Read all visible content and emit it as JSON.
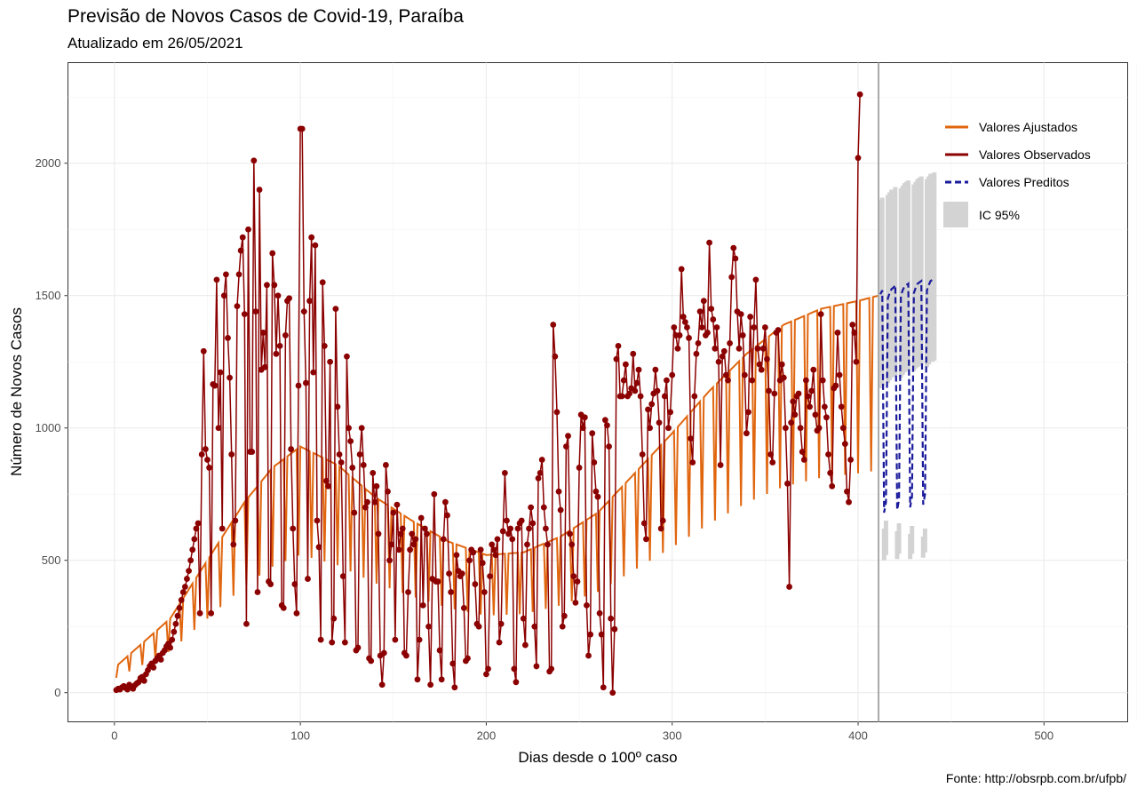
{
  "title": "Previsão de Novos Casos de Covid-19, Paraíba",
  "subtitle": "Atualizado em 26/05/2021",
  "caption": "Fonte: http://obsrpb.com.br/ufpb/",
  "colors": {
    "fitted": "#E0660F",
    "observed": "#8B0000",
    "predicted": "#1A1A9C",
    "ci": "#D3D3D3",
    "cutoff": "#A9A9A9",
    "grid": "#EBEBEB"
  },
  "chart_data": {
    "type": "line",
    "xlabel": "Dias desde o 100º caso",
    "ylabel": "Número de Novos Casos",
    "xlim": [
      -25,
      545
    ],
    "ylim": [
      -110,
      2380
    ],
    "x_ticks": [
      0,
      100,
      200,
      300,
      400,
      500
    ],
    "y_ticks": [
      0,
      500,
      1000,
      1500,
      2000
    ],
    "grid": true,
    "cutoff_x": 411,
    "legend": {
      "position": "top-right",
      "entries": [
        "Valores Ajustados",
        "Valores Observados",
        "Valores Preditos",
        "IC 95%"
      ]
    },
    "series": [
      {
        "name": "Valores Observados",
        "x_start": 1,
        "values": [
          10,
          15,
          12,
          20,
          25,
          18,
          12,
          30,
          22,
          15,
          28,
          35,
          40,
          55,
          60,
          45,
          70,
          85,
          100,
          110,
          95,
          120,
          130,
          140,
          125,
          150,
          160,
          175,
          185,
          170,
          200,
          230,
          260,
          290,
          320,
          350,
          380,
          400,
          430,
          460,
          500,
          540,
          580,
          620,
          640,
          300,
          900,
          1290,
          920,
          880,
          850,
          300,
          1165,
          1160,
          1560,
          1000,
          1210,
          620,
          1500,
          1580,
          1340,
          1190,
          900,
          560,
          650,
          1460,
          1580,
          1670,
          1720,
          1430,
          260,
          1750,
          910,
          910,
          2010,
          1440,
          380,
          1900,
          1220,
          1360,
          1230,
          1540,
          420,
          410,
          1660,
          1540,
          1280,
          1500,
          1310,
          330,
          320,
          1350,
          1480,
          1490,
          920,
          620,
          410,
          300,
          1160,
          2130,
          2130,
          1440,
          1170,
          430,
          1480,
          1720,
          1210,
          1690,
          650,
          550,
          200,
          1550,
          1310,
          800,
          780,
          1250,
          190,
          280,
          1450,
          1080,
          900,
          870,
          440,
          190,
          1270,
          1000,
          950,
          850,
          680,
          160,
          170,
          900,
          1000,
          860,
          700,
          720,
          130,
          120,
          830,
          720,
          780,
          600,
          140,
          30,
          150,
          860,
          760,
          500,
          560,
          680,
          200,
          710,
          540,
          600,
          620,
          150,
          140,
          380,
          540,
          600,
          560,
          580,
          50,
          200,
          660,
          330,
          620,
          600,
          250,
          30,
          430,
          750,
          420,
          420,
          160,
          50,
          580,
          720,
          670,
          450,
          380,
          110,
          20,
          520,
          460,
          440,
          450,
          320,
          120,
          130,
          500,
          540,
          530,
          410,
          260,
          250,
          540,
          490,
          380,
          70,
          90,
          440,
          560,
          540,
          520,
          580,
          190,
          260,
          610,
          830,
          650,
          600,
          620,
          580,
          90,
          40,
          620,
          640,
          650,
          280,
          180,
          560,
          620,
          700,
          640,
          250,
          100,
          810,
          830,
          880,
          700,
          620,
          560,
          80,
          90,
          1390,
          1270,
          1060,
          760,
          690,
          250,
          290,
          930,
          970,
          600,
          560,
          440,
          340,
          420,
          850,
          1050,
          1000,
          1040,
          330,
          140,
          220,
          980,
          870,
          760,
          740,
          300,
          220,
          20,
          1030,
          1010,
          930,
          280,
          0,
          240,
          1260,
          1310,
          1120,
          1120,
          1180,
          1240,
          1120,
          1130,
          1150,
          1280,
          1140,
          1170,
          1220,
          1120,
          900,
          640,
          580,
          1070,
          1000,
          1090,
          1130,
          1220,
          1140,
          1020,
          620,
          650,
          1120,
          1180,
          1000,
          1060,
          1200,
          1380,
          1350,
          1300,
          1350,
          1600,
          1420,
          1400,
          1380,
          1340,
          960,
          870,
          1120,
          1280,
          1320,
          1440,
          1380,
          1480,
          1350,
          1360,
          1700,
          1450,
          1410,
          1300,
          1380,
          1250,
          860,
          1270,
          1290,
          1200,
          1180,
          1320,
          1570,
          1680,
          1640,
          1440,
          1300,
          1430,
          1350,
          1200,
          980,
          1060,
          1420,
          1180,
          1380,
          1560,
          1300,
          1240,
          1220,
          1300,
          1380,
          1260,
          1140,
          900,
          870,
          1130,
          1360,
          1370,
          1180,
          1240,
          1190,
          1000,
          790,
          400,
          1020,
          1100,
          1050,
          1120,
          1130,
          1000,
          910,
          880,
          1180,
          1120,
          1080,
          1140,
          1220,
          1050,
          990,
          1000,
          1430,
          1180,
          1080,
          1040,
          900,
          830,
          780,
          1150,
          1160,
          1360,
          1200,
          1080,
          1000,
          940,
          760,
          720,
          880,
          1390,
          1360,
          1250,
          2020,
          2260
        ]
      },
      {
        "name": "Valores Ajustados",
        "description_baseline": "smooth trend with weekly dips",
        "x_start": 1,
        "trend_points": [
          [
            1,
            100
          ],
          [
            30,
            280
          ],
          [
            50,
            500
          ],
          [
            70,
            720
          ],
          [
            85,
            850
          ],
          [
            100,
            930
          ],
          [
            120,
            860
          ],
          [
            140,
            740
          ],
          [
            160,
            650
          ],
          [
            180,
            570
          ],
          [
            200,
            520
          ],
          [
            220,
            530
          ],
          [
            240,
            590
          ],
          [
            260,
            680
          ],
          [
            280,
            830
          ],
          [
            300,
            980
          ],
          [
            320,
            1140
          ],
          [
            340,
            1280
          ],
          [
            360,
            1390
          ],
          [
            380,
            1450
          ],
          [
            400,
            1480
          ],
          [
            411,
            1500
          ]
        ],
        "weekly_dip_ratio": 0.44
      },
      {
        "name": "Valores Preditos",
        "x_start": 412,
        "values": [
          1505,
          1520,
          680,
          720,
          1490,
          1510,
          1525,
          1530,
          1540,
          690,
          730,
          1500,
          1520,
          1535,
          1540,
          1545,
          700,
          740,
          1510,
          1530,
          1545,
          1550,
          1555,
          710,
          750,
          1520,
          1540,
          1555,
          1560,
          1565
        ]
      }
    ],
    "ci_band": {
      "name": "IC 95%",
      "x_start": 412,
      "upper": [
        1860,
        1870,
        620,
        650,
        1880,
        1890,
        1900,
        1900,
        1910,
        610,
        640,
        1905,
        1915,
        1925,
        1930,
        1935,
        600,
        630,
        1920,
        1930,
        1940,
        1945,
        1950,
        590,
        620,
        1940,
        1950,
        1960,
        1960,
        1965
      ],
      "lower": [
        1150,
        1160,
        500,
        520,
        1170,
        1180,
        1190,
        1195,
        1200,
        505,
        525,
        1190,
        1200,
        1210,
        1215,
        1220,
        505,
        525,
        1215,
        1225,
        1230,
        1235,
        1240,
        510,
        530,
        1230,
        1240,
        1250,
        1250,
        1255
      ]
    }
  }
}
